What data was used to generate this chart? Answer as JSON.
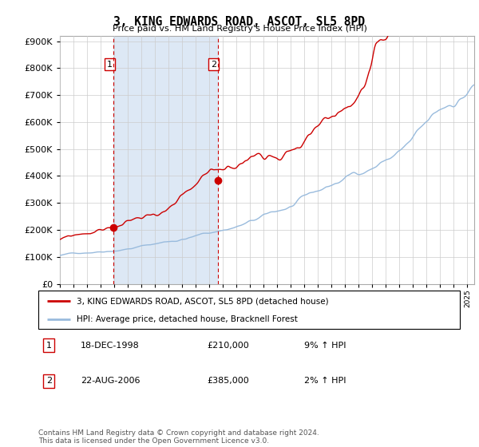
{
  "title": "3, KING EDWARDS ROAD, ASCOT, SL5 8PD",
  "subtitle": "Price paid vs. HM Land Registry's House Price Index (HPI)",
  "legend_line1": "3, KING EDWARDS ROAD, ASCOT, SL5 8PD (detached house)",
  "legend_line2": "HPI: Average price, detached house, Bracknell Forest",
  "transaction1_date": "18-DEC-1998",
  "transaction1_price": "£210,000",
  "transaction1_hpi": "9% ↑ HPI",
  "transaction2_date": "22-AUG-2006",
  "transaction2_price": "£385,000",
  "transaction2_hpi": "2% ↑ HPI",
  "footer": "Contains HM Land Registry data © Crown copyright and database right 2024.\nThis data is licensed under the Open Government Licence v3.0.",
  "ylim": [
    0,
    920000
  ],
  "yticks": [
    0,
    100000,
    200000,
    300000,
    400000,
    500000,
    600000,
    700000,
    800000,
    900000
  ],
  "red_color": "#cc0000",
  "blue_color": "#99bbdd",
  "shade_color": "#dde8f5",
  "background_color": "#ffffff",
  "grid_color": "#cccccc",
  "transaction1_x": 1998.96,
  "transaction1_y": 210000,
  "transaction2_x": 2006.63,
  "transaction2_y": 385000,
  "vline1_x": 1998.96,
  "vline2_x": 2006.63,
  "xmin": 1995.0,
  "xmax": 2025.5
}
